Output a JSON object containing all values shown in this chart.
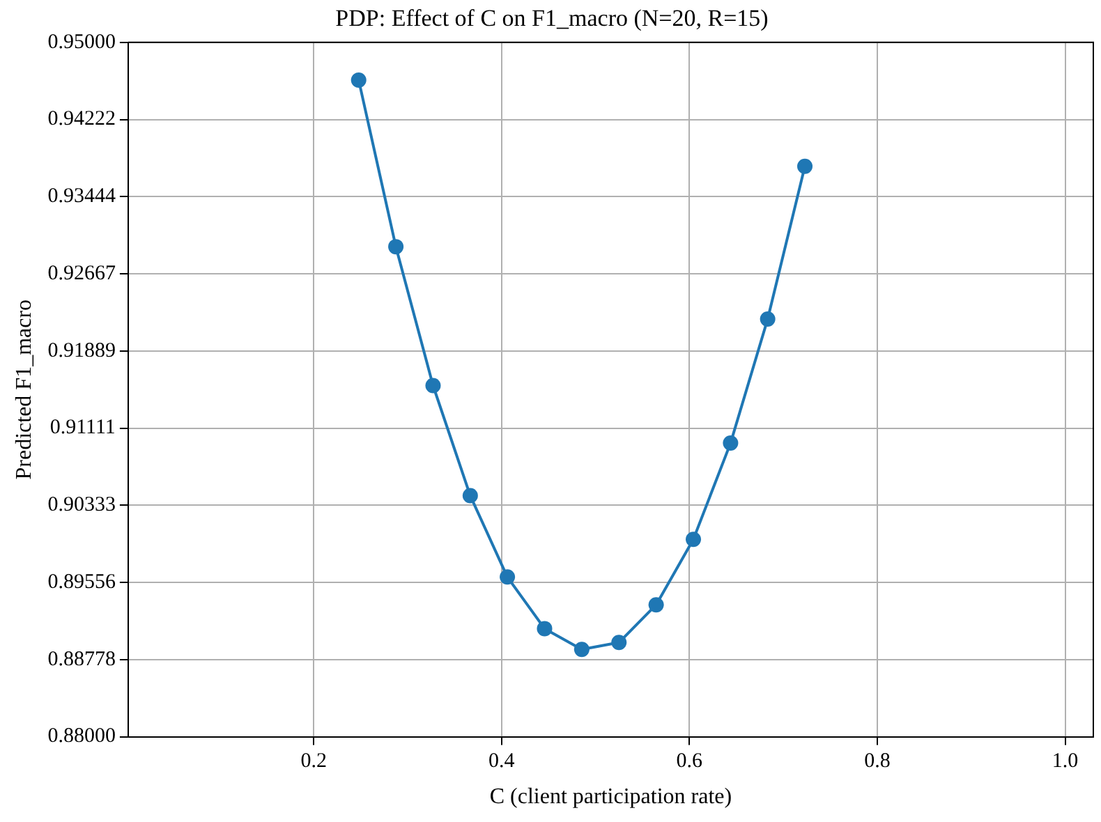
{
  "chart_data": {
    "type": "line",
    "title": "PDP: Effect of C on F1_macro (N=20, R=15)",
    "xlabel": "C (client participation rate)",
    "ylabel": "Predicted F1_macro",
    "x": [
      0.2479,
      0.2875,
      0.3271,
      0.3667,
      0.4062,
      0.4458,
      0.4854,
      0.525,
      0.5646,
      0.6042,
      0.6438,
      0.6833,
      0.7229
    ],
    "series": [
      {
        "color": "#1f77b4",
        "values": [
          0.9462,
          0.9294,
          0.9154,
          0.9043,
          0.8961,
          0.8909,
          0.8888,
          0.8895,
          0.8933,
          0.8999,
          0.9096,
          0.9221,
          0.9375
        ]
      }
    ],
    "xlim": [
      0.0025,
      1.03
    ],
    "xticks": [
      0.2,
      0.4,
      0.6,
      0.8,
      {
        "value": 1.0,
        "label": "1.0"
      }
    ],
    "ylim": [
      0.88,
      0.95
    ],
    "yticks": [
      {
        "value": 0.88,
        "label": "0.88000"
      },
      {
        "value": 0.88778,
        "label": "0.88778"
      },
      {
        "value": 0.89556,
        "label": "0.89556"
      },
      {
        "value": 0.90333,
        "label": "0.90333"
      },
      {
        "value": 0.91111,
        "label": "0.91111"
      },
      {
        "value": 0.91889,
        "label": "0.91889"
      },
      {
        "value": 0.92667,
        "label": "0.92667"
      },
      {
        "value": 0.93444,
        "label": "0.93444"
      },
      {
        "value": 0.94222,
        "label": "0.94222"
      },
      {
        "value": 0.95,
        "label": "0.95000"
      }
    ],
    "grid": true,
    "legend": false,
    "marker": "circle",
    "line_style": "solid"
  }
}
